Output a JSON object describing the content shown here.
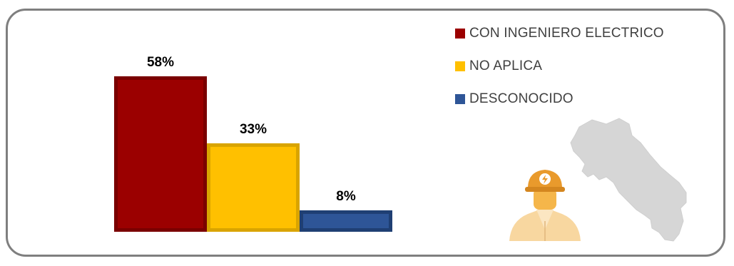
{
  "chart_data": {
    "type": "bar",
    "categories": [
      "CON INGENIERO ELECTRICO",
      "NO APLICA",
      "DESCONOCIDO"
    ],
    "values": [
      58,
      33,
      8
    ],
    "data_labels": [
      "58%",
      "33%",
      "8%"
    ],
    "colors": [
      "#9b0000",
      "#ffc000",
      "#2e5597"
    ],
    "border_colors": [
      "#7a0000",
      "#d9a400",
      "#1f3f73"
    ],
    "ylim": [
      0,
      58
    ],
    "grid": false,
    "legend_position": "top-right"
  },
  "legend": {
    "items": [
      {
        "label": "CON INGENIERO ELECTRICO",
        "color": "#9b0000"
      },
      {
        "label": "NO APLICA",
        "color": "#ffc000"
      },
      {
        "label": "DESCONOCIDO",
        "color": "#2e5597"
      }
    ]
  },
  "illustrations": {
    "worker": "engineer-hardhat-icon",
    "map": "costa-rica-map-icon"
  }
}
